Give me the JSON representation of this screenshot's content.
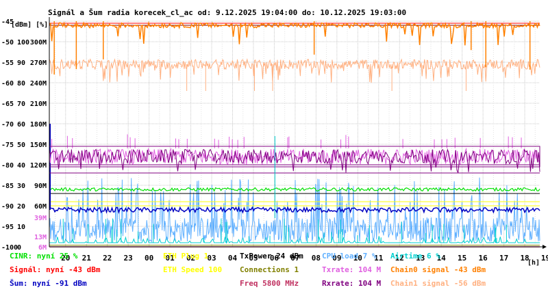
{
  "chart_data": {
    "type": "line",
    "title": "Signál a Šum radia korecek_cl_ac od: 9.12.2025 19:04:00 do: 10.12.2025 19:03:00",
    "unit_header": "[dBm] [%]",
    "x_unit": "[h]",
    "x_ticks": [
      "20",
      "21",
      "22",
      "23",
      "00",
      "01",
      "02",
      "03",
      "04",
      "05",
      "06",
      "07",
      "08",
      "09",
      "10",
      "11",
      "12",
      "13",
      "14",
      "15",
      "16",
      "17",
      "18",
      "19"
    ],
    "y_dbm_ticks": [
      "-45",
      "-50",
      "-55",
      "-60",
      "-65",
      "-70",
      "-75",
      "-80",
      "-85",
      "-90",
      "-95",
      "-100"
    ],
    "y_pct_ticks": [
      "",
      "100",
      "90",
      "80",
      "70",
      "60",
      "50",
      "40",
      "30",
      "20",
      "10",
      "0"
    ],
    "y_rate_ticks": [
      "",
      "300M",
      "270M",
      "240M",
      "210M",
      "180M",
      "150M",
      "120M",
      "90M",
      "60M",
      "",
      "6M"
    ],
    "y_rate_extra": [
      {
        "label": "39M",
        "color": "#e060e0"
      },
      {
        "label": "13M",
        "color": "#e060e0"
      }
    ],
    "ylim_dbm": [
      -100,
      -45
    ],
    "grid": true,
    "series": [
      {
        "name": "Chain0 signal",
        "color": "#ff8000",
        "level_dbm": -46,
        "dips_dbm": -60
      },
      {
        "name": "Chain1 signal",
        "color": "#ffb080",
        "level_dbm": -55.5,
        "dips_dbm": -62
      },
      {
        "name": "Signál",
        "color": "#ff0000",
        "level_dbm": -45.5
      },
      {
        "name": "Txrate",
        "color": "#e060e0",
        "level_dbm": -78,
        "spikes_dbm": -74
      },
      {
        "name": "Rxrate",
        "color": "#800080",
        "level_dbm": -78,
        "low_dbm": -80,
        "lowest_dbm": -82
      },
      {
        "name": "CPU load",
        "color": "#60b0ff",
        "level_dbm": -97,
        "spikes_dbm": -83
      },
      {
        "name": "Šum",
        "color": "#0000c0",
        "level_dbm": -91
      },
      {
        "name": "CINR",
        "color": "#00e000",
        "level_dbm": -86
      },
      {
        "name": "Airtime",
        "color": "#00d0d0",
        "level_dbm": -99
      },
      {
        "name": "ETH Plug",
        "color": "#ffff00",
        "level_dbm": -89
      },
      {
        "name": "ETH Speed",
        "color": "#ffff00",
        "level_dbm": -90
      },
      {
        "name": "TxPower",
        "color": "#000000",
        "level_dbm": -87
      },
      {
        "name": "Connections",
        "color": "#808000",
        "level_dbm": -99.6
      },
      {
        "name": "Freq",
        "color": "#c03060",
        "level_dbm": -100
      }
    ],
    "legend": [
      [
        {
          "text": "CINR: nyní 25 %",
          "color": "#00e000"
        },
        {
          "text": "Signál: nyní -43 dBm",
          "color": "#ff0000"
        },
        {
          "text": "Šum: nyní -91 dBm",
          "color": "#0000c0"
        }
      ],
      [
        {
          "text": "ETH Plug 1",
          "color": "#ffff00"
        },
        {
          "text": "ETH Speed 100",
          "color": "#ffff00"
        }
      ],
      [
        {
          "text": "TxPower 24 dBm",
          "color": "#000000"
        },
        {
          "text": "Connections 1",
          "color": "#808000"
        },
        {
          "text": "Freq 5800 MHz",
          "color": "#c03060"
        }
      ],
      [
        {
          "text": "CPU load 7 %",
          "color": "#60b0ff"
        },
        {
          "text": "Txrate: 104 M",
          "color": "#e060e0"
        },
        {
          "text": "Rxrate: 104 M",
          "color": "#800080"
        }
      ],
      [
        {
          "text": "Airtime 6 %",
          "color": "#00d0d0"
        },
        {
          "text": "Chain0 signal -43 dBm",
          "color": "#ff8000"
        },
        {
          "text": "Chain1 signal -56 dBm",
          "color": "#ffb080"
        }
      ]
    ]
  }
}
